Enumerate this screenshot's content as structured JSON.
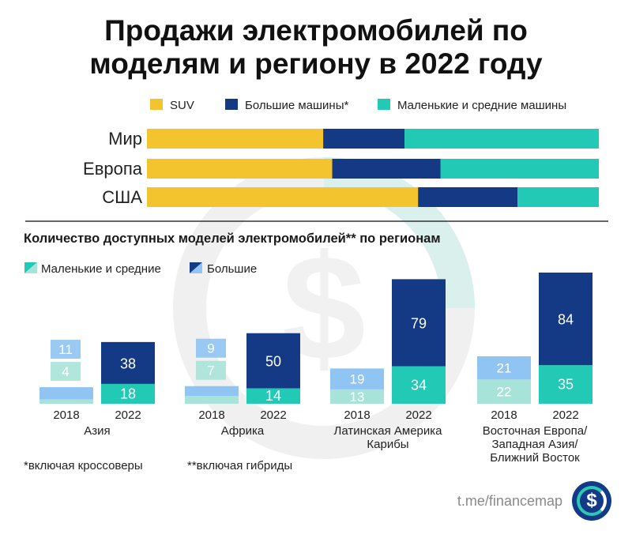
{
  "title": {
    "line1": "Продажи электромобилей по",
    "line2": "моделям и региону в 2022 году"
  },
  "colors": {
    "suv": "#f4c42f",
    "large": "#143a86",
    "small": "#22c9b4",
    "small_2018": "#a8e3d9",
    "large_2018": "#8fc4f3"
  },
  "footnotes": {
    "crossovers": "*включая кроссоверы",
    "hybrids": "**включая гибриды"
  },
  "brand": {
    "text": "t.me/financemap",
    "icon": "dollar-icon"
  },
  "chart_data": [
    {
      "type": "bar",
      "orientation": "horizontal",
      "stacked": true,
      "percent": true,
      "legend_position": "top",
      "categories": [
        "Мир",
        "Европа",
        "США"
      ],
      "series": [
        {
          "name": "SUV",
          "values": [
            39,
            41,
            60
          ]
        },
        {
          "name": "Большие машины*",
          "values": [
            18,
            24,
            22
          ]
        },
        {
          "name": "Маленькие и средние машины",
          "values": [
            43,
            35,
            18
          ]
        }
      ]
    },
    {
      "type": "bar",
      "stacked": true,
      "title": "Количество доступных моделей электромобилей** по регионам",
      "legend_position": "top-left",
      "series_names": [
        "Маленькие и средние",
        "Большие"
      ],
      "groups": [
        {
          "label": "Азия",
          "bars": [
            {
              "year": "2018",
              "small": 4,
              "large": 11
            },
            {
              "year": "2022",
              "small": 18,
              "large": 38
            }
          ]
        },
        {
          "label": "Африка",
          "bars": [
            {
              "year": "2018",
              "small": 7,
              "large": 9
            },
            {
              "year": "2022",
              "small": 14,
              "large": 50
            }
          ]
        },
        {
          "label": "Латинская Америка\nКарибы",
          "bars": [
            {
              "year": "2018",
              "small": 13,
              "large": 19
            },
            {
              "year": "2022",
              "small": 34,
              "large": 79
            }
          ]
        },
        {
          "label": "Восточная Европа/\nЗападная Азия/\nБлижний Восток",
          "bars": [
            {
              "year": "2018",
              "small": 22,
              "large": 21
            },
            {
              "year": "2022",
              "small": 35,
              "large": 84
            }
          ]
        }
      ]
    }
  ]
}
